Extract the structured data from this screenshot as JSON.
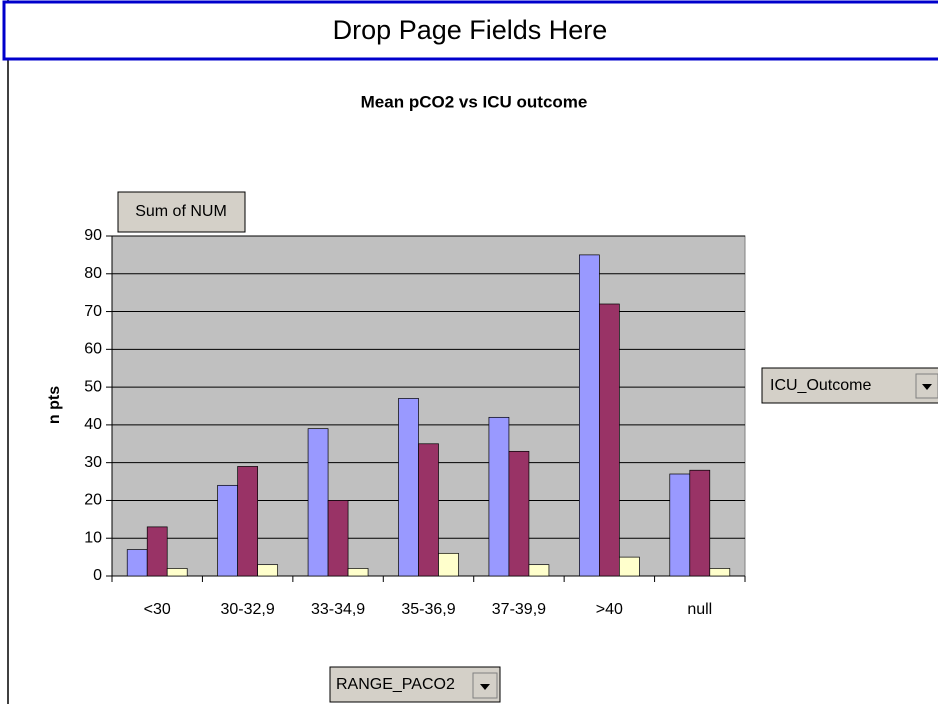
{
  "chart_data": {
    "type": "bar",
    "page_fields_label": "Drop Page Fields Here",
    "title": "Mean pCO2 vs ICU outcome",
    "data_field_button": "Sum of NUM",
    "series_field_button": "ICU_Outcome",
    "category_field_button": "RANGE_PACO2",
    "y_label": "n pts",
    "categories": [
      "<30",
      "30-32,9",
      "33-34,9",
      "35-36,9",
      "37-39,9",
      ">40",
      "null"
    ],
    "series": [
      {
        "color": "#9999ff",
        "values": [
          7,
          24,
          39,
          47,
          42,
          85,
          27
        ]
      },
      {
        "color": "#993366",
        "values": [
          13,
          29,
          20,
          35,
          33,
          72,
          28
        ]
      },
      {
        "color": "#ffffcc",
        "values": [
          2,
          3,
          2,
          6,
          3,
          5,
          2
        ]
      }
    ],
    "ylim": [
      0,
      90
    ],
    "yticks": [
      0,
      10,
      20,
      30,
      40,
      50,
      60,
      70,
      80,
      90
    ],
    "grid": true,
    "plot_background": "#c0c0c0"
  }
}
